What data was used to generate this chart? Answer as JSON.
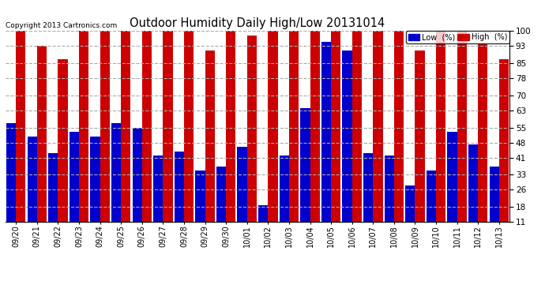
{
  "title": "Outdoor Humidity Daily High/Low 20131014",
  "copyright": "Copyright 2013 Cartronics.com",
  "legend_low_label": "Low  (%)",
  "legend_high_label": "High  (%)",
  "low_color": "#0000cc",
  "high_color": "#cc0000",
  "background_color": "#ffffff",
  "yticks": [
    11,
    18,
    26,
    33,
    41,
    48,
    55,
    63,
    70,
    78,
    85,
    93,
    100
  ],
  "ylim": [
    11,
    100
  ],
  "categories": [
    "09/20",
    "09/21",
    "09/22",
    "09/23",
    "09/24",
    "09/25",
    "09/26",
    "09/27",
    "09/28",
    "09/29",
    "09/30",
    "10/01",
    "10/02",
    "10/03",
    "10/04",
    "10/05",
    "10/06",
    "10/07",
    "10/08",
    "10/09",
    "10/10",
    "10/11",
    "10/12",
    "10/13"
  ],
  "high_values": [
    100,
    93,
    87,
    100,
    100,
    100,
    100,
    100,
    100,
    91,
    100,
    98,
    100,
    100,
    100,
    100,
    100,
    100,
    100,
    91,
    100,
    100,
    94,
    87
  ],
  "low_values": [
    57,
    51,
    43,
    53,
    51,
    57,
    55,
    42,
    44,
    35,
    37,
    46,
    19,
    42,
    64,
    95,
    91,
    43,
    42,
    28,
    35,
    53,
    47,
    37
  ]
}
